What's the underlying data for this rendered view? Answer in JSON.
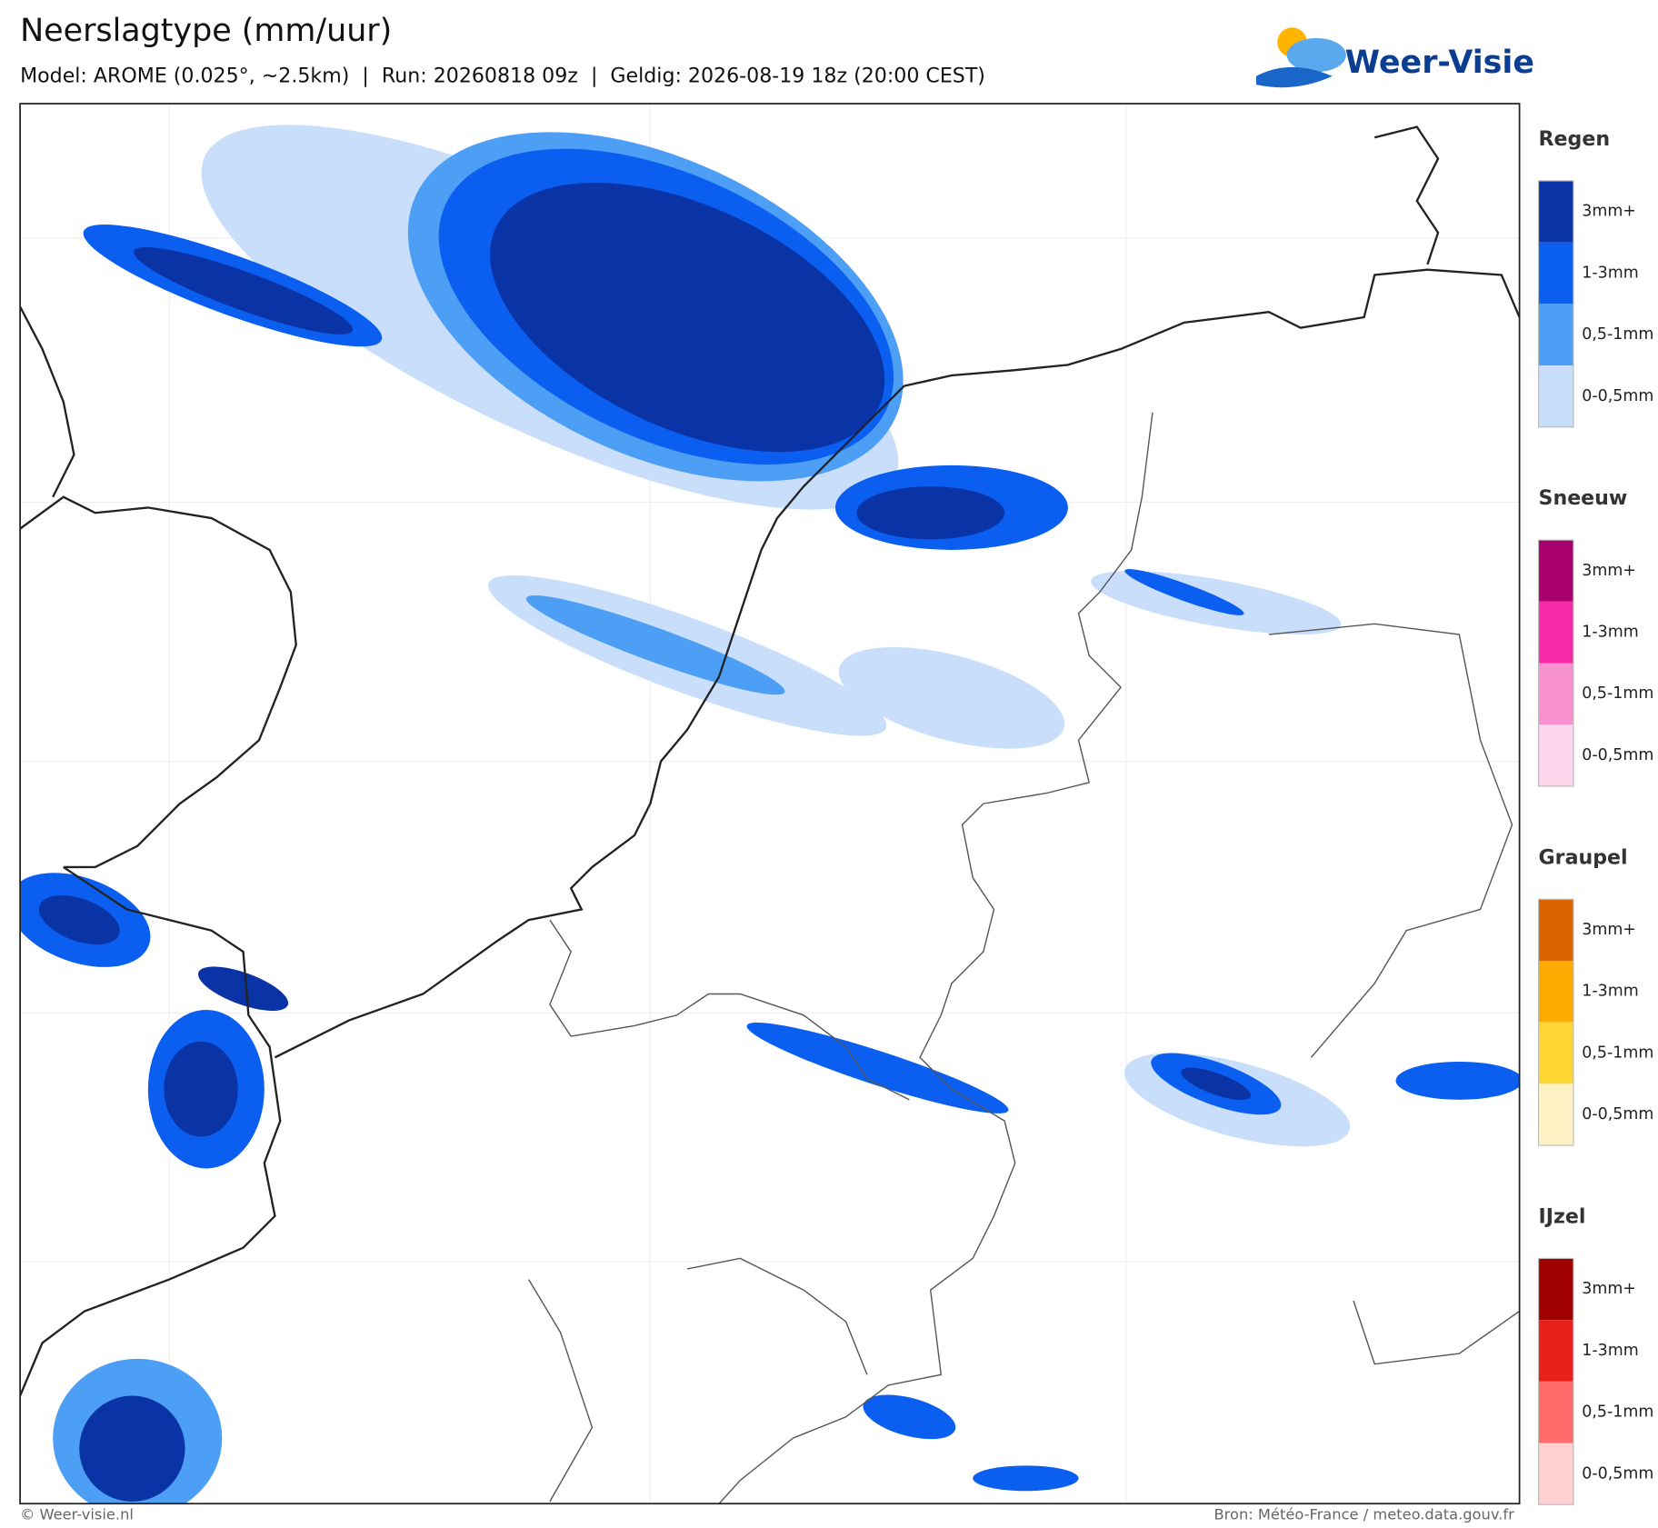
{
  "header": {
    "title": "Neerslagtype (mm/uur)",
    "subtitle": "Model: AROME (0.025°, ~2.5km)  |  Run: 20260818 09z  |  Geldig: 2026-08-19 18z (20:00 CEST)",
    "logo": "Weer-Visie"
  },
  "legend": [
    {
      "title": "Regen",
      "items": [
        {
          "label": "3mm+",
          "color": "#0a34a6"
        },
        {
          "label": "1-3mm",
          "color": "#0a5ef0"
        },
        {
          "label": "0,5-1mm",
          "color": "#4d9ef5"
        },
        {
          "label": "0-0,5mm",
          "color": "#c8defa"
        }
      ]
    },
    {
      "title": "Sneeuw",
      "items": [
        {
          "label": "3mm+",
          "color": "#a8006e"
        },
        {
          "label": "1-3mm",
          "color": "#f52aa8"
        },
        {
          "label": "0,5-1mm",
          "color": "#f892cf"
        },
        {
          "label": "0-0,5mm",
          "color": "#fdd6ec"
        }
      ]
    },
    {
      "title": "Graupel",
      "items": [
        {
          "label": "3mm+",
          "color": "#db6400"
        },
        {
          "label": "1-3mm",
          "color": "#ffaa00"
        },
        {
          "label": "0,5-1mm",
          "color": "#ffd633"
        },
        {
          "label": "0-0,5mm",
          "color": "#fff2c4"
        }
      ]
    },
    {
      "title": "IJzel",
      "items": [
        {
          "label": "3mm+",
          "color": "#a00000"
        },
        {
          "label": "1-3mm",
          "color": "#e8201c"
        },
        {
          "label": "0,5-1mm",
          "color": "#ff6a6a"
        },
        {
          "label": "0-0,5mm",
          "color": "#ffd0d0"
        }
      ]
    }
  ],
  "footer": {
    "left": "© Weer-visie.nl",
    "right": "Bron: Météo-France / meteo.data.gouv.fr"
  }
}
